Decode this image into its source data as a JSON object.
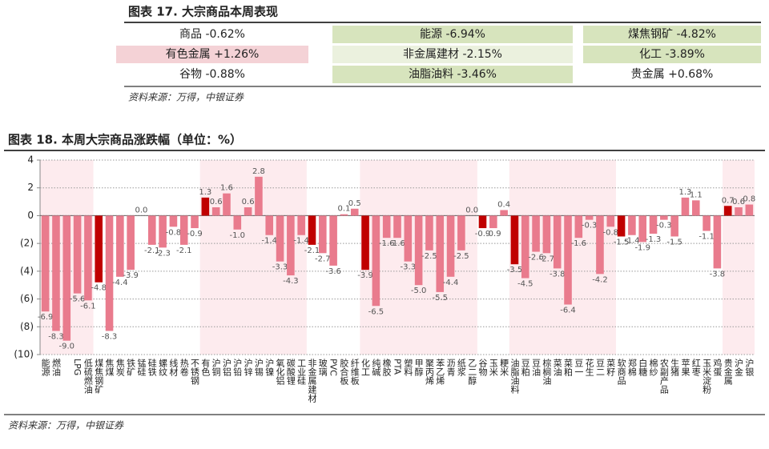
{
  "table": {
    "title": "图表 17. 大宗商品本周表现",
    "rows": [
      [
        "商品 -0.62%",
        "能源 -6.94%",
        "煤焦钢矿 -4.82%"
      ],
      [
        "有色金属 +1.26%",
        "非金属建材 -2.15%",
        "化工 -3.89%"
      ],
      [
        "谷物 -0.88%",
        "油脂油料 -3.46%",
        "贵金属 +0.68%"
      ]
    ],
    "source": "资料来源：万得，中银证券"
  },
  "chart_data": {
    "type": "bar",
    "title": "图表 18. 本周大宗商品涨跌幅（单位：%）",
    "categories": [
      "能源",
      "燃油",
      null,
      "LPG",
      "低硫燃油",
      "煤焦钢矿",
      "焦煤",
      "焦炭",
      "铁矿",
      "锰硅",
      "硅铁",
      "螺纹",
      "线材",
      "热卷",
      "不锈钢",
      "有色",
      "沪铜",
      "沪铝",
      "沪铅",
      "沪锌",
      "沪锡",
      "沪镍",
      "氧化铝",
      "碳酸锂",
      "工业硅",
      "非金属建材",
      "玻璃",
      "PVC",
      "胶合板",
      "纤维板",
      "化工",
      "纯碱",
      "橡胶",
      "PTA",
      "塑料",
      "甲醇",
      "聚丙烯",
      "苯乙烯",
      "沥青",
      "纸浆",
      "乙二醇",
      "谷物",
      "玉米",
      "粳米",
      "油脂油料",
      "豆粕",
      "豆油",
      "棕榈油",
      "菜油",
      "菜粕",
      "豆一",
      "花生",
      "豆二",
      "菜籽",
      "软商品",
      "郑棉",
      "白糖",
      "棉纱",
      "农副产品",
      "生猪",
      "苹果",
      "红枣",
      "玉米淀粉",
      "鸡蛋",
      "贵金属",
      "沪金",
      "沪银"
    ],
    "values": [
      -6.9,
      -8.3,
      -9.0,
      -5.6,
      -6.1,
      -4.8,
      -8.3,
      -4.4,
      -3.9,
      0.0,
      -2.1,
      -2.3,
      -0.8,
      -2.1,
      -0.9,
      1.3,
      0.6,
      1.6,
      -1.0,
      0.6,
      2.8,
      -1.4,
      -3.3,
      -4.3,
      -1.4,
      -2.1,
      -2.7,
      -3.6,
      0.1,
      0.5,
      -3.9,
      -6.5,
      -1.6,
      -1.6,
      -3.3,
      -5.0,
      -2.5,
      -5.5,
      -4.4,
      -2.5,
      0.0,
      -0.9,
      -0.9,
      0.4,
      -3.5,
      -4.5,
      -2.6,
      -2.7,
      -3.8,
      -6.4,
      -1.6,
      -0.3,
      -4.2,
      -0.8,
      -1.5,
      -1.4,
      -1.9,
      -1.3,
      -0.3,
      -1.5,
      1.3,
      1.1,
      -1.1,
      -3.8,
      0.7,
      0.6,
      0.8
    ],
    "value_labels": [
      "-6.9",
      "-8.3",
      "-9.0",
      "-5.6",
      "-6.1",
      "-4.8",
      "-8.3",
      "-4.4",
      "-3.9",
      "0.0",
      "-2.1",
      "-2.3",
      "-0.8",
      "-2.1",
      "-0.9",
      "1.3",
      "0.6",
      "1.6",
      "-1.0",
      "0.6",
      "2.8",
      "-1.4",
      "-3.3",
      "-4.3",
      "-1.4",
      "-2.1",
      "-2.7",
      "-3.6",
      "0.1",
      "0.5",
      "-3.9",
      "-6.5",
      "-1.6",
      "-1.6",
      "-3.3",
      "-5.0",
      "-2.5",
      "-5.5",
      "-4.4",
      "-2.5",
      "0.0",
      "-0.9",
      "-0.9",
      "0.4",
      "-3.5",
      "-4.5",
      "-2.6",
      "-2.7",
      "-3.8",
      "-6.4",
      "-1.6",
      "-0.3",
      "-4.2",
      "-0.8",
      "-1.5",
      "-1.4",
      "-1.9",
      "-1.3",
      "-0.3",
      "-1.5",
      "1.3",
      "1.1",
      "-1.1",
      "-3.8",
      "0.7",
      "0.6",
      "0.8"
    ],
    "colors": [
      "#e97b8d",
      "#e97b8d",
      "#e97b8d",
      "#e97b8d",
      "#e97b8d",
      "#c00000",
      "#e97b8d",
      "#e97b8d",
      "#e97b8d",
      "#e97b8d",
      "#e97b8d",
      "#e97b8d",
      "#e97b8d",
      "#e97b8d",
      "#e97b8d",
      "#c00000",
      "#e97b8d",
      "#e97b8d",
      "#e97b8d",
      "#e97b8d",
      "#e97b8d",
      "#e97b8d",
      "#e97b8d",
      "#e97b8d",
      "#e97b8d",
      "#c00000",
      "#e97b8d",
      "#e97b8d",
      "#e97b8d",
      "#e97b8d",
      "#c00000",
      "#e97b8d",
      "#e97b8d",
      "#e97b8d",
      "#e97b8d",
      "#e97b8d",
      "#e97b8d",
      "#e97b8d",
      "#e97b8d",
      "#e97b8d",
      "#e97b8d",
      "#c00000",
      "#e97b8d",
      "#e97b8d",
      "#c00000",
      "#e97b8d",
      "#e97b8d",
      "#e97b8d",
      "#e97b8d",
      "#e97b8d",
      "#e97b8d",
      "#e97b8d",
      "#e97b8d",
      "#e97b8d",
      "#c00000",
      "#e97b8d",
      "#e97b8d",
      "#e97b8d",
      "#e97b8d",
      "#e97b8d",
      "#e97b8d",
      "#e97b8d",
      "#e97b8d",
      "#e97b8d",
      "#c00000",
      "#e97b8d",
      "#e97b8d"
    ],
    "ylim": [
      -10,
      4
    ],
    "yticks": [
      4,
      2,
      0,
      {
        "value": -2,
        "label": "(2)"
      },
      {
        "value": -4,
        "label": "(4)"
      },
      {
        "value": -6,
        "label": "(6)"
      },
      {
        "value": -8,
        "label": "(8)"
      },
      {
        "value": -10,
        "label": "(10)"
      }
    ],
    "grid": true,
    "source": "资料来源：万得，中银证券"
  }
}
